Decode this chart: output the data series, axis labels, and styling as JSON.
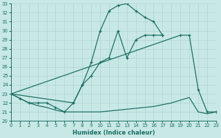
{
  "xlabel": "Humidex (Indice chaleur)",
  "bg_color": "#c8e8e5",
  "grid_color": "#a8d0cc",
  "line_color": "#1a6e62",
  "xlim": [
    0,
    23
  ],
  "ylim": [
    20,
    33
  ],
  "xticks": [
    0,
    1,
    2,
    3,
    4,
    5,
    6,
    7,
    8,
    9,
    10,
    11,
    12,
    13,
    14,
    15,
    16,
    17,
    18,
    19,
    20,
    21,
    22,
    23
  ],
  "yticks": [
    20,
    21,
    22,
    23,
    24,
    25,
    26,
    27,
    28,
    29,
    30,
    31,
    32,
    33
  ],
  "lines": [
    {
      "x": [
        0,
        1,
        2,
        3,
        4,
        5,
        6,
        7,
        8,
        9,
        10,
        11,
        12,
        13,
        14,
        15,
        16,
        17
      ],
      "y": [
        23,
        22.5,
        22,
        22,
        22,
        21.5,
        21,
        22,
        24,
        25,
        26.5,
        27,
        30,
        27,
        29,
        29.5,
        29.5,
        29.5
      ],
      "marker": true
    },
    {
      "x": [
        0,
        1,
        2,
        3,
        4,
        5,
        6,
        7,
        8,
        9,
        10,
        11,
        12,
        13,
        14,
        15,
        16,
        17,
        18,
        19,
        20,
        21,
        22,
        23
      ],
      "y": [
        23,
        22.5,
        22,
        21.7,
        21.5,
        21.2,
        21,
        21,
        21,
        21,
        21,
        21.1,
        21.2,
        21.3,
        21.4,
        21.5,
        21.6,
        21.8,
        22,
        22.3,
        22.6,
        21,
        20.8,
        21
      ],
      "marker": false
    },
    {
      "x": [
        0,
        7,
        8,
        9,
        10,
        11,
        12,
        13,
        14,
        15,
        16,
        17
      ],
      "y": [
        23,
        22,
        24,
        26.5,
        30,
        32.2,
        32.8,
        33,
        32.2,
        31.5,
        31,
        29.5
      ],
      "marker": true
    },
    {
      "x": [
        0,
        19,
        20,
        21,
        22,
        23
      ],
      "y": [
        23,
        29.5,
        29.5,
        23.5,
        21,
        21
      ],
      "marker": true
    }
  ]
}
